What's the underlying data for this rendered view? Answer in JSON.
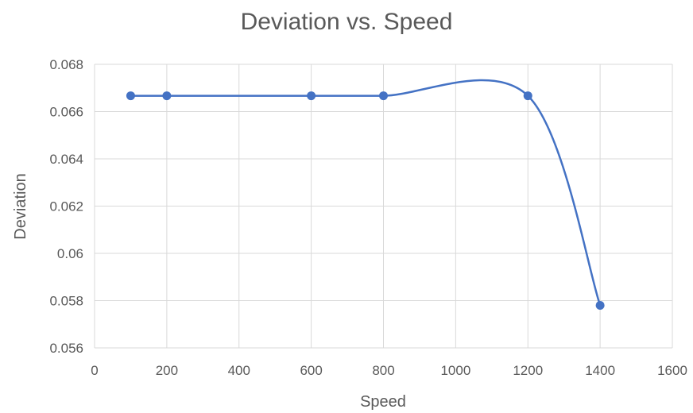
{
  "chart_data": {
    "type": "scatter",
    "title": "Deviation vs. Speed",
    "xlabel": "Speed",
    "ylabel": "Deviation",
    "xlim": [
      0,
      1600
    ],
    "ylim": [
      0.056,
      0.068
    ],
    "x_ticks": [
      0,
      200,
      400,
      600,
      800,
      1000,
      1200,
      1400,
      1600
    ],
    "x_tick_labels": [
      "0",
      "200",
      "400",
      "600",
      "800",
      "1000",
      "1200",
      "1400",
      "1600"
    ],
    "y_ticks": [
      0.056,
      0.058,
      0.06,
      0.062,
      0.064,
      0.066,
      0.068
    ],
    "y_tick_labels": [
      "0.056",
      "0.058",
      "0.06",
      "0.062",
      "0.064",
      "0.066",
      "0.068"
    ],
    "grid": true,
    "smooth_line": true,
    "series": [
      {
        "x": [
          100,
          200,
          600,
          800,
          1200,
          1400
        ],
        "y": [
          0.06667,
          0.06667,
          0.06667,
          0.06667,
          0.06667,
          0.0578
        ],
        "color": "#4472C4"
      }
    ],
    "colors": {
      "series": "#4472C4",
      "grid": "#d9d9d9",
      "text": "#595959"
    }
  }
}
